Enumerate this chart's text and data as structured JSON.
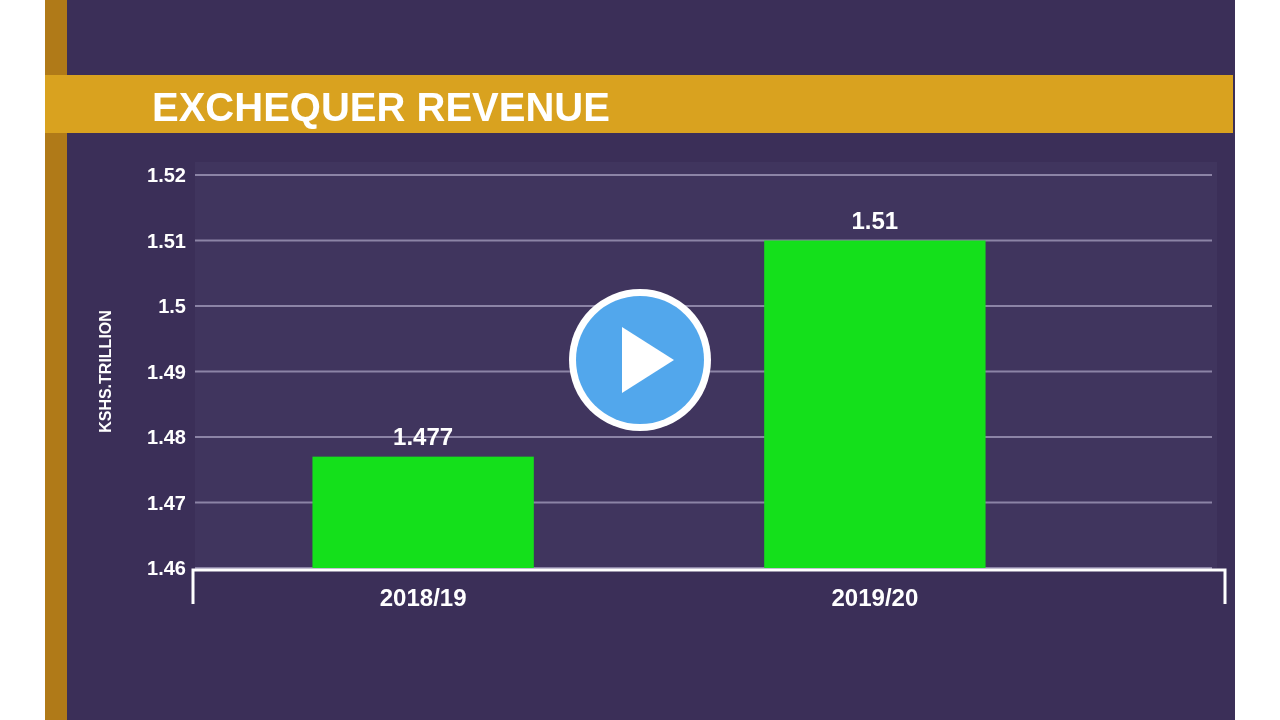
{
  "chart_data": {
    "type": "bar",
    "title": "EXCHEQUER REVENUE",
    "ylabel": "KSHS.TRILLION",
    "categories": [
      "2018/19",
      "2019/20"
    ],
    "values": [
      1.477,
      1.51
    ],
    "color": "#14e01b",
    "ylim": [
      1.46,
      1.52
    ],
    "yticks": [
      1.46,
      1.47,
      1.48,
      1.49,
      1.5,
      1.51,
      1.52
    ],
    "grid": "y",
    "data_labels": true
  }
}
